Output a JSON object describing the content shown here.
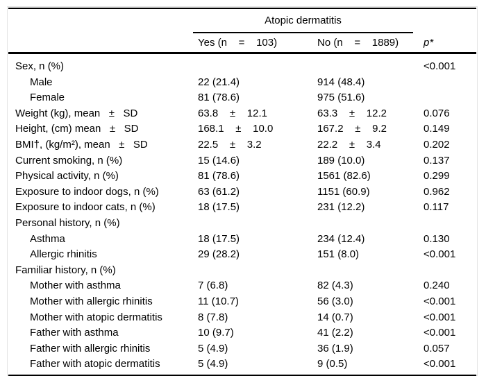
{
  "table": {
    "spanner": "Atopic dermatitis",
    "columns": {
      "yes": "Yes (n    =    103)",
      "no": "No (n    =    1889)",
      "p": "p*"
    },
    "rows": [
      {
        "label": "Sex, n (%)",
        "yes": "",
        "no": "",
        "p": "<0.001"
      },
      {
        "label": "Male",
        "yes": "22 (21.4)",
        "no": "914 (48.4)",
        "p": ""
      },
      {
        "label": "Female",
        "yes": "81 (78.6)",
        "no": "975 (51.6)",
        "p": ""
      },
      {
        "label": "Weight (kg), mean   ±   SD",
        "yes": "63.8    ±    12.1",
        "no": "63.3    ±    12.2",
        "p": "0.076"
      },
      {
        "label": "Height, (cm) mean   ±   SD",
        "yes": "168.1    ±    10.0",
        "no": "167.2    ±    9.2",
        "p": "0.149"
      },
      {
        "label": "BMI†, (kg/m²), mean   ±   SD",
        "yes": "22.5    ±    3.2",
        "no": "22.2    ±    3.4",
        "p": "0.202"
      },
      {
        "label": "Current smoking, n (%)",
        "yes": "15 (14.6)",
        "no": "189 (10.0)",
        "p": "0.137"
      },
      {
        "label": "Physical activity, n (%)",
        "yes": "81 (78.6)",
        "no": "1561 (82.6)",
        "p": "0.299"
      },
      {
        "label": "Exposure to indoor dogs, n (%)",
        "yes": "63 (61.2)",
        "no": "1151 (60.9)",
        "p": "0.962"
      },
      {
        "label": "Exposure to indoor cats, n (%)",
        "yes": "18 (17.5)",
        "no": "231 (12.2)",
        "p": "0.117"
      },
      {
        "label": "Personal history, n (%)",
        "yes": "",
        "no": "",
        "p": ""
      },
      {
        "label": "Asthma",
        "yes": "18 (17.5)",
        "no": "234 (12.4)",
        "p": "0.130"
      },
      {
        "label": "Allergic rhinitis",
        "yes": "29 (28.2)",
        "no": "151 (8.0)",
        "p": "<0.001"
      },
      {
        "label": "Familiar history, n (%)",
        "yes": "",
        "no": "",
        "p": ""
      },
      {
        "label": "Mother with asthma",
        "yes": "7 (6.8)",
        "no": "82 (4.3)",
        "p": "0.240"
      },
      {
        "label": "Mother with allergic rhinitis",
        "yes": "11 (10.7)",
        "no": "56 (3.0)",
        "p": "<0.001"
      },
      {
        "label": "Mother with atopic dermatitis",
        "yes": "8 (7.8)",
        "no": "14 (0.7)",
        "p": "<0.001"
      },
      {
        "label": "Father with asthma",
        "yes": "10 (9.7)",
        "no": "41 (2.2)",
        "p": "<0.001"
      },
      {
        "label": "Father with allergic rhinitis",
        "yes": "5 (4.9)",
        "no": "36 (1.9)",
        "p": "0.057"
      },
      {
        "label": "Father with atopic dermatitis",
        "yes": "5 (4.9)",
        "no": "9 (0.5)",
        "p": "<0.001"
      }
    ]
  }
}
